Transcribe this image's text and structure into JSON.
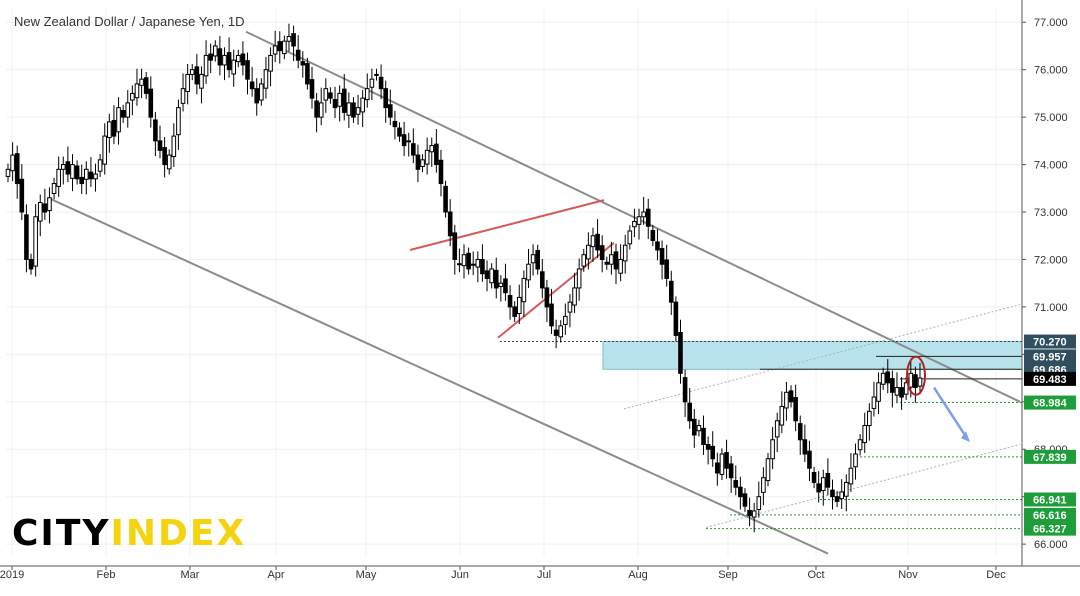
{
  "chart_data": {
    "type": "candlestick",
    "title": "New Zealand Dollar / Japanese Yen, 1D",
    "ylim": [
      65.75,
      77.3
    ],
    "y_ticks": [
      "66.000",
      "67.000",
      "68.000",
      "69.000",
      "70.000",
      "71.000",
      "72.000",
      "73.000",
      "74.000",
      "75.000",
      "76.000",
      "77.000"
    ],
    "x_ticks": [
      "2019",
      "Feb",
      "Mar",
      "Apr",
      "May",
      "Jun",
      "Jul",
      "Aug",
      "Sep",
      "Oct",
      "Nov",
      "Dec"
    ],
    "price_levels": [
      {
        "label": "70.270",
        "value": 70.27,
        "color": "#2f4f5f"
      },
      {
        "label": "69.957",
        "value": 69.957,
        "color": "#2f4f5f"
      },
      {
        "label": "69.686",
        "value": 69.686,
        "color": "#2f4f5f"
      },
      {
        "label": "69.483",
        "value": 69.483,
        "color": "#000000"
      },
      {
        "label": "68.984",
        "value": 68.984,
        "color": "#1e9e3a"
      },
      {
        "label": "67.839",
        "value": 67.839,
        "color": "#1e9e3a"
      },
      {
        "label": "66.941",
        "value": 66.941,
        "color": "#1e9e3a"
      },
      {
        "label": "66.616",
        "value": 66.616,
        "color": "#1e9e3a"
      },
      {
        "label": "66.327",
        "value": 66.327,
        "color": "#1e9e3a"
      }
    ],
    "resistance_zone": [
      69.686,
      70.27
    ],
    "channel": {
      "upper": {
        "from": [
          "Mar",
          76.8
        ],
        "to": [
          "Dec",
          69.0
        ]
      },
      "lower": {
        "from": [
          "2019",
          73.3
        ],
        "to": [
          "Sep",
          65.8
        ]
      }
    },
    "rising_wedge": {
      "upper": {
        "from": [
          "May",
          72.2
        ],
        "to": [
          "Jul",
          73.25
        ]
      },
      "lower": {
        "from": [
          "Jun",
          70.35
        ],
        "to": [
          "Jul",
          72.35
        ]
      }
    },
    "grid": true,
    "series": [
      {
        "values": [
          73.9,
          74.2,
          73.6,
          73.0,
          72.0,
          71.8,
          72.9,
          73.2,
          73.0,
          73.3,
          73.6,
          73.9,
          74.0,
          73.8,
          74.0,
          73.7,
          73.6,
          73.9,
          73.7,
          73.8,
          74.1,
          74.6,
          74.9,
          74.6,
          75.2,
          75.0,
          75.3,
          75.5,
          75.7,
          75.8,
          75.5,
          75.0,
          74.5,
          74.3,
          74.0,
          74.2,
          74.6,
          75.2,
          75.6,
          75.9,
          76.0,
          75.7,
          75.9,
          76.3,
          76.2,
          76.5,
          76.1,
          76.3,
          76.0,
          76.2,
          76.3,
          76.1,
          75.8,
          75.6,
          75.3,
          75.7,
          76.0,
          76.3,
          76.5,
          76.4,
          76.6,
          76.7,
          76.5,
          76.2,
          76.1,
          75.7,
          75.4,
          75.0,
          75.3,
          75.6,
          75.4,
          75.2,
          75.5,
          75.1,
          75.3,
          75.0,
          75.2,
          75.4,
          75.6,
          75.8,
          75.9,
          75.6,
          75.2,
          75.0,
          74.8,
          74.6,
          74.4,
          74.5,
          74.2,
          73.9,
          74.1,
          74.3,
          74.4,
          74.0,
          73.6,
          73.0,
          72.5,
          72.0,
          71.9,
          72.1,
          71.8,
          71.9,
          72.0,
          71.7,
          71.6,
          71.8,
          71.4,
          71.5,
          71.3,
          71.0,
          70.8,
          71.2,
          71.6,
          71.9,
          72.1,
          71.8,
          71.4,
          71.0,
          70.6,
          70.4,
          70.6,
          70.8,
          71.1,
          71.4,
          71.8,
          72.1,
          72.3,
          72.5,
          72.2,
          72.0,
          71.9,
          72.1,
          71.8,
          72.0,
          72.3,
          72.6,
          72.8,
          72.9,
          73.0,
          72.7,
          72.4,
          72.2,
          71.9,
          71.6,
          71.1,
          70.4,
          69.6,
          69.0,
          68.6,
          68.3,
          68.5,
          68.1,
          68.0,
          67.8,
          67.5,
          67.9,
          67.6,
          67.4,
          67.2,
          67.0,
          66.8,
          66.6,
          66.7,
          67.0,
          67.4,
          67.8,
          68.2,
          68.6,
          68.9,
          69.2,
          69.0,
          68.6,
          68.2,
          67.9,
          67.6,
          67.3,
          67.1,
          67.4,
          67.2,
          67.0,
          66.9,
          67.1,
          67.3,
          67.6,
          67.9,
          68.2,
          68.5,
          68.8,
          69.1,
          69.4,
          69.6,
          69.4,
          69.2,
          69.3,
          69.1,
          69.4,
          69.6,
          69.3,
          69.5
        ]
      }
    ]
  }
}
